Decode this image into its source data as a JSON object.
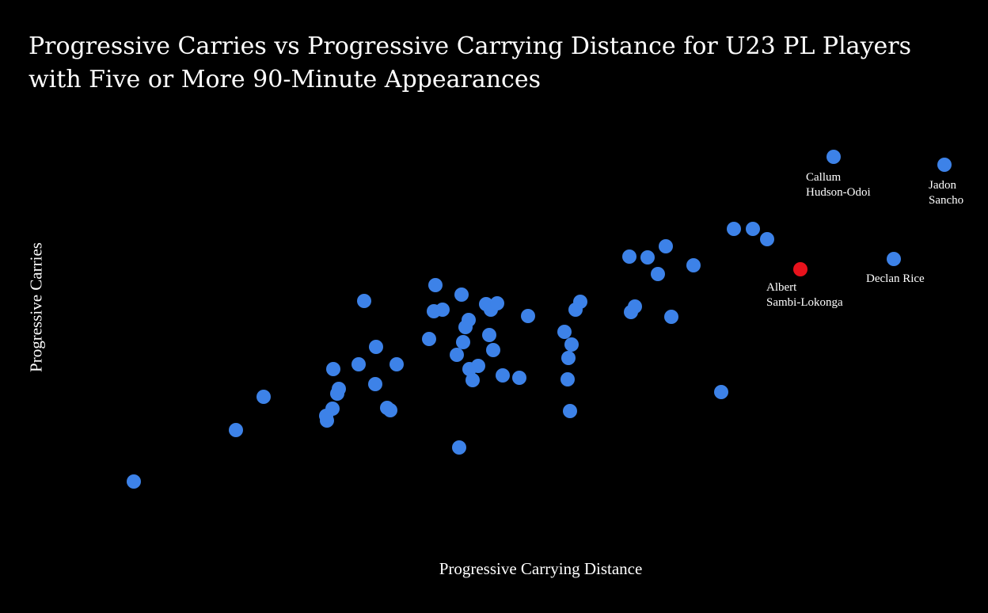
{
  "chart_data": {
    "type": "scatter",
    "title": "Progressive Carries vs Progressive Carrying Distance for U23 PL Players with Five or More 90-Minute Appearances",
    "xlabel": "Progressive Carrying Distance",
    "ylabel": "Progressive Carries",
    "grid": false,
    "legend": "none",
    "colors": {
      "background": "#000000",
      "point": "#3d82e8",
      "highlight": "#e8121c",
      "text": "#ffffff"
    },
    "points": [
      [
        169,
        608
      ],
      [
        298,
        543
      ],
      [
        333,
        501
      ],
      [
        413,
        531
      ],
      [
        412,
        525
      ],
      [
        420,
        516
      ],
      [
        426,
        497
      ],
      [
        428,
        491
      ],
      [
        421,
        466
      ],
      [
        453,
        460
      ],
      [
        474,
        485
      ],
      [
        475,
        438
      ],
      [
        460,
        380
      ],
      [
        501,
        460
      ],
      [
        489,
        515
      ],
      [
        493,
        518
      ],
      [
        542,
        428
      ],
      [
        548,
        393
      ],
      [
        559,
        391
      ],
      [
        550,
        360
      ],
      [
        583,
        372
      ],
      [
        580,
        565
      ],
      [
        577,
        448
      ],
      [
        585,
        432
      ],
      [
        588,
        413
      ],
      [
        592,
        404
      ],
      [
        593,
        466
      ],
      [
        597,
        480
      ],
      [
        604,
        462
      ],
      [
        618,
        423
      ],
      [
        623,
        442
      ],
      [
        614,
        384
      ],
      [
        620,
        391
      ],
      [
        628,
        383
      ],
      [
        635,
        474
      ],
      [
        656,
        477
      ],
      [
        667,
        399
      ],
      [
        713,
        419
      ],
      [
        722,
        435
      ],
      [
        718,
        452
      ],
      [
        717,
        479
      ],
      [
        720,
        519
      ],
      [
        727,
        391
      ],
      [
        733,
        381
      ],
      [
        797,
        394
      ],
      [
        802,
        387
      ],
      [
        795,
        324
      ],
      [
        818,
        325
      ],
      [
        841,
        311
      ],
      [
        831,
        346
      ],
      [
        848,
        400
      ],
      [
        876,
        335
      ],
      [
        911,
        495
      ],
      [
        927,
        289
      ],
      [
        951,
        289
      ],
      [
        969,
        302
      ],
      [
        1053,
        198
      ],
      [
        1193,
        208
      ],
      [
        1129,
        327
      ]
    ],
    "highlight_point": [
      1011,
      340
    ],
    "annotations": [
      {
        "lines": [
          "Callum",
          "Hudson-Odoi"
        ],
        "anchor": [
          1018,
          228
        ]
      },
      {
        "lines": [
          "Jadon",
          "Sancho"
        ],
        "anchor": [
          1173,
          238
        ]
      },
      {
        "lines": [
          "Albert",
          "Sambi-Lokonga"
        ],
        "anchor": [
          968,
          367
        ]
      },
      {
        "lines": [
          "Declan Rice"
        ],
        "anchor": [
          1094,
          356
        ]
      }
    ]
  }
}
